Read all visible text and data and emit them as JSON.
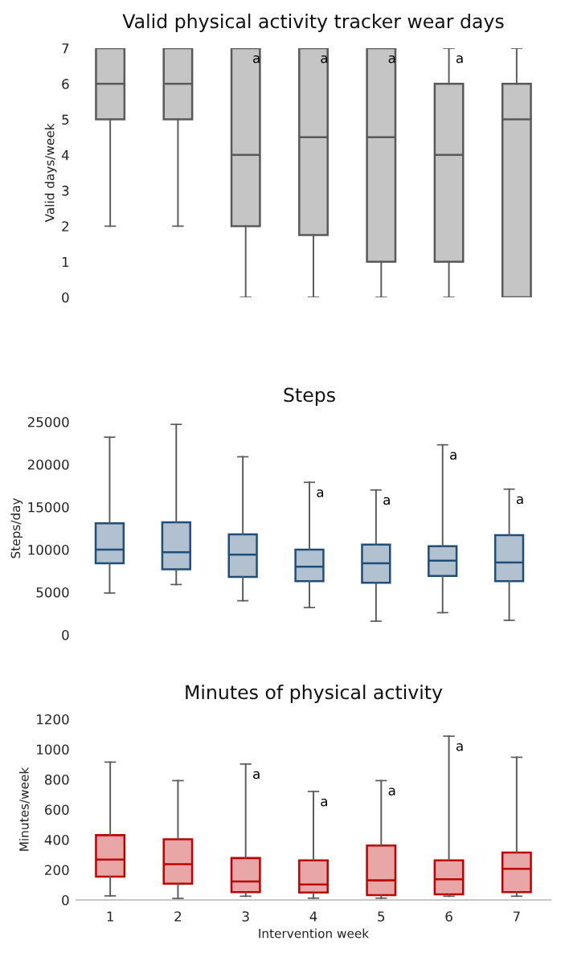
{
  "chart_data": [
    {
      "type": "box",
      "title": "Valid physical activity tracker wear days",
      "ylabel": "Valid days/week",
      "categories": [
        "1",
        "2",
        "3",
        "4",
        "5",
        "6",
        "7"
      ],
      "ylim": [
        0,
        7
      ],
      "yticks": [
        0,
        1,
        2,
        3,
        4,
        5,
        6,
        7
      ],
      "tick_labels": "y",
      "grid": false,
      "legend": false,
      "series": [
        {
          "color": "#595959",
          "boxes": [
            {
              "low": 2,
              "q1": 5,
              "median": 6,
              "q3": 7,
              "high": 7
            },
            {
              "low": 2,
              "q1": 5,
              "median": 6,
              "q3": 7,
              "high": 7
            },
            {
              "low": 0,
              "q1": 2,
              "median": 4,
              "q3": 7,
              "high": 7
            },
            {
              "low": 0,
              "q1": 1.75,
              "median": 4.5,
              "q3": 7,
              "high": 7
            },
            {
              "low": 0,
              "q1": 1,
              "median": 4.5,
              "q3": 7,
              "high": 7
            },
            {
              "low": 0,
              "q1": 1,
              "median": 4,
              "q3": 6,
              "high": 7
            },
            {
              "low": 0,
              "q1": 0,
              "median": 5,
              "q3": 6,
              "high": 7
            }
          ]
        }
      ],
      "annotations": [
        {
          "text": "a",
          "x": "3",
          "y": 7
        },
        {
          "text": "a",
          "x": "4",
          "y": 7
        },
        {
          "text": "a",
          "x": "5",
          "y": 7
        },
        {
          "text": "a",
          "x": "6",
          "y": 7
        }
      ]
    },
    {
      "type": "box",
      "title": "Steps",
      "ylabel": "Steps/day",
      "categories": [
        "1",
        "2",
        "3",
        "4",
        "5",
        "6",
        "7"
      ],
      "ylim": [
        0,
        25000
      ],
      "yticks": [
        0,
        5000,
        10000,
        15000,
        20000,
        25000
      ],
      "tick_labels": "y",
      "grid": false,
      "legend": false,
      "series": [
        {
          "color": "#1f4e79",
          "boxes": [
            {
              "low": 4900,
              "q1": 8400,
              "median": 10000,
              "q3": 13100,
              "high": 23200
            },
            {
              "low": 5900,
              "q1": 7700,
              "median": 9700,
              "q3": 13200,
              "high": 24700
            },
            {
              "low": 4000,
              "q1": 6800,
              "median": 9400,
              "q3": 11800,
              "high": 20900
            },
            {
              "low": 3200,
              "q1": 6300,
              "median": 8000,
              "q3": 10000,
              "high": 17900
            },
            {
              "low": 1600,
              "q1": 6100,
              "median": 8400,
              "q3": 10600,
              "high": 17000
            },
            {
              "low": 2600,
              "q1": 6900,
              "median": 8700,
              "q3": 10400,
              "high": 22300
            },
            {
              "low": 1700,
              "q1": 6300,
              "median": 8500,
              "q3": 11700,
              "high": 17100
            }
          ]
        }
      ],
      "annotations": [
        {
          "text": "a",
          "x": "4",
          "y": 17900
        },
        {
          "text": "a",
          "x": "5",
          "y": 17000
        },
        {
          "text": "a",
          "x": "6",
          "y": 22300
        },
        {
          "text": "a",
          "x": "7",
          "y": 17100
        }
      ]
    },
    {
      "type": "box",
      "title": "Minutes of physical activity",
      "ylabel": "Minutes/week",
      "xlabel": "Intervention week",
      "categories": [
        "1",
        "2",
        "3",
        "4",
        "5",
        "6",
        "7"
      ],
      "ylim": [
        0,
        1200
      ],
      "yticks": [
        0,
        200,
        400,
        600,
        800,
        1000,
        1200
      ],
      "grid": false,
      "legend": false,
      "series": [
        {
          "color": "#c00000",
          "boxes": [
            {
              "low": 27,
              "q1": 155,
              "median": 268,
              "q3": 430,
              "high": 915
            },
            {
              "low": 10,
              "q1": 108,
              "median": 238,
              "q3": 403,
              "high": 792
            },
            {
              "low": 25,
              "q1": 52,
              "median": 123,
              "q3": 278,
              "high": 902
            },
            {
              "low": 12,
              "q1": 49,
              "median": 103,
              "q3": 263,
              "high": 720
            },
            {
              "low": 12,
              "q1": 32,
              "median": 130,
              "q3": 361,
              "high": 792
            },
            {
              "low": 25,
              "q1": 37,
              "median": 138,
              "q3": 263,
              "high": 1087
            },
            {
              "low": 25,
              "q1": 52,
              "median": 207,
              "q3": 315,
              "high": 947
            }
          ]
        }
      ],
      "annotations": [
        {
          "text": "a",
          "x": "3",
          "y": 902
        },
        {
          "text": "a",
          "x": "4",
          "y": 720
        },
        {
          "text": "a",
          "x": "5",
          "y": 792
        },
        {
          "text": "a",
          "x": "6",
          "y": 1087
        }
      ]
    }
  ]
}
